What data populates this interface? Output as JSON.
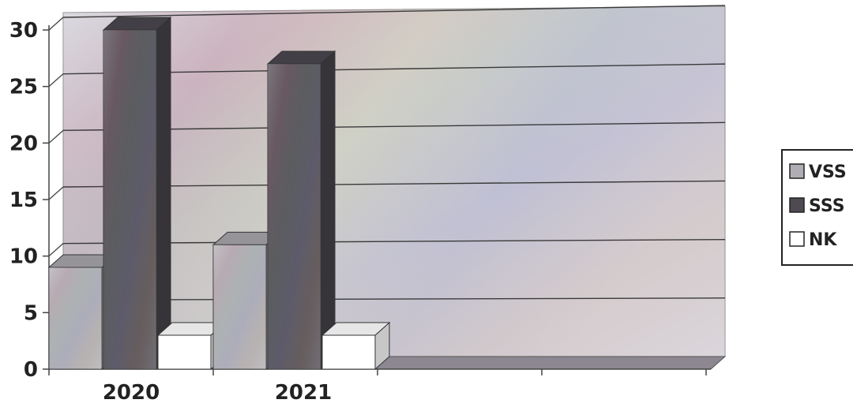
{
  "chart_data": {
    "type": "bar",
    "categories": [
      "2020",
      "2021"
    ],
    "series": [
      {
        "name": "VSS",
        "values": [
          9,
          11
        ],
        "color": "#b0aeb4"
      },
      {
        "name": "SSS",
        "values": [
          30,
          27
        ],
        "color": "#4f4a52"
      },
      {
        "name": "NK",
        "values": [
          3,
          3
        ],
        "color": "#ffffff"
      }
    ],
    "ylim": [
      0,
      30
    ],
    "yticks": [
      "0",
      "5",
      "10",
      "15",
      "20",
      "25",
      "30"
    ],
    "grid": true,
    "legend_position": "right",
    "style": "3d-clustered-column"
  }
}
